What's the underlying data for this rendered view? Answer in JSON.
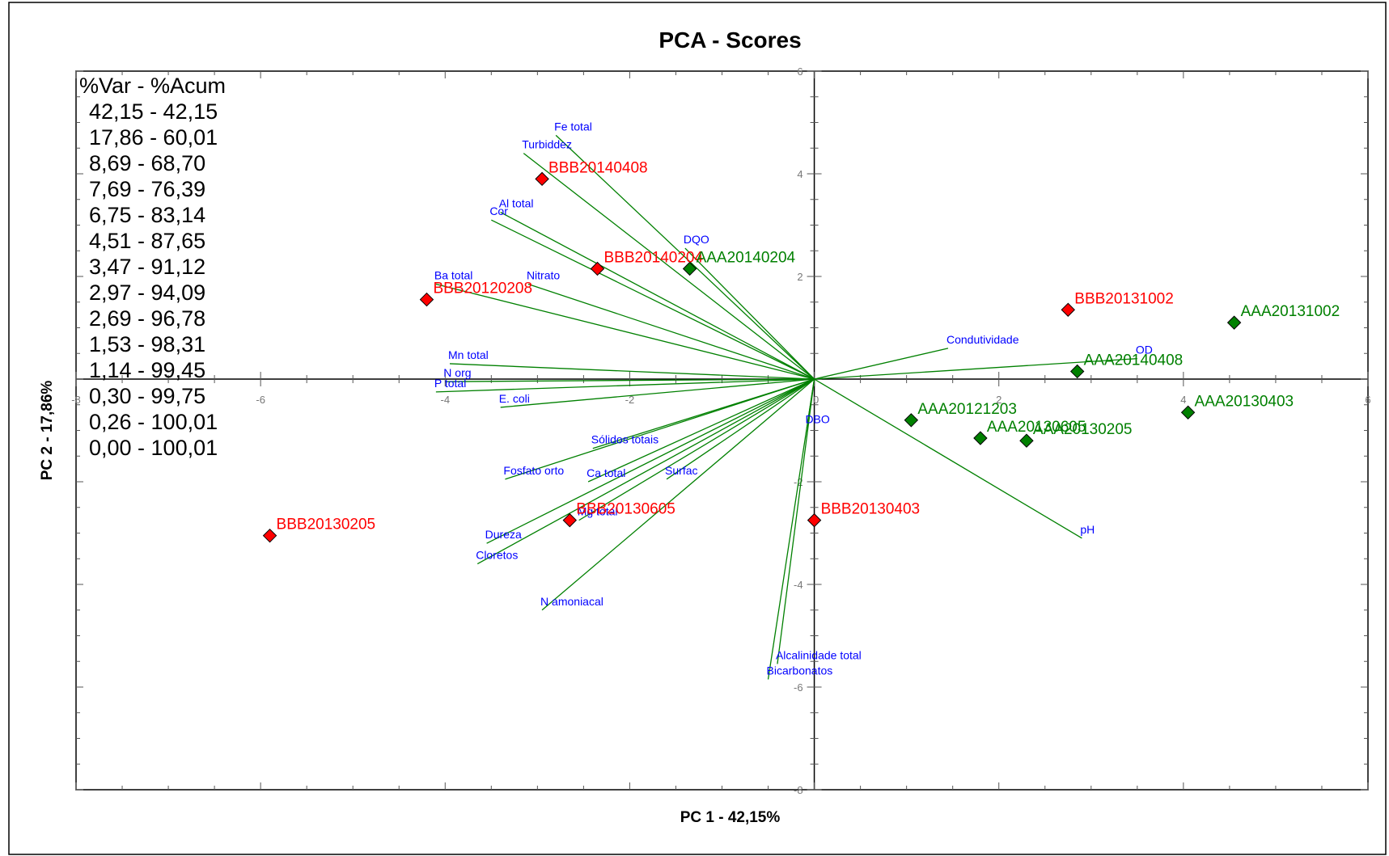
{
  "chart_data": {
    "type": "scatter",
    "title": "PCA - Scores",
    "xlabel": "PC 1 - 42,15%",
    "ylabel": "PC 2 - 17,86%",
    "xlim": [
      -8,
      6
    ],
    "ylim": [
      -8,
      6
    ],
    "x_ticks": [
      {
        "value": -8,
        "label": "-8"
      },
      {
        "value": -6,
        "label": "-6"
      },
      {
        "value": -4,
        "label": "-4"
      },
      {
        "value": -2,
        "label": "-2"
      },
      {
        "value": 0,
        "label": "0"
      },
      {
        "value": 2,
        "label": "2"
      },
      {
        "value": 4,
        "label": "4"
      },
      {
        "value": 6,
        "label": "6"
      }
    ],
    "y_ticks": [
      {
        "value": 6,
        "label": "6"
      },
      {
        "value": 4,
        "label": "4"
      },
      {
        "value": 2,
        "label": "2"
      },
      {
        "value": 0,
        "label": "0"
      },
      {
        "value": -2,
        "label": "-2"
      },
      {
        "value": -4,
        "label": "-4"
      },
      {
        "value": -6,
        "label": "-6"
      },
      {
        "value": -8,
        "label": "-8"
      }
    ],
    "variance_header": "%Var - %Acum",
    "variance_rows": [
      "42,15 - 42,15",
      "17,86 - 60,01",
      "8,69 - 68,70",
      "7,69 - 76,39",
      "6,75 - 83,14",
      "4,51 - 87,65",
      "3,47 - 91,12",
      "2,97 - 94,09",
      "2,69 - 96,78",
      "1,53 - 98,31",
      "1,14 - 99,45",
      "0,30 - 99,75",
      "0,26 - 100,01",
      "0,00 - 100,01"
    ],
    "scores": [
      {
        "label": "BBB20140408",
        "x": -2.95,
        "y": 3.9,
        "group": "BBB"
      },
      {
        "label": "BBB20140204",
        "x": -2.35,
        "y": 2.15,
        "group": "BBB"
      },
      {
        "label": "BBB20120208",
        "x": -4.2,
        "y": 1.55,
        "group": "BBB"
      },
      {
        "label": "BBB20130205",
        "x": -5.9,
        "y": -3.05,
        "group": "BBB"
      },
      {
        "label": "BBB20130605",
        "x": -2.65,
        "y": -2.75,
        "group": "BBB"
      },
      {
        "label": "BBB20130403",
        "x": 0.0,
        "y": -2.75,
        "group": "BBB"
      },
      {
        "label": "BBB20131002",
        "x": 2.75,
        "y": 1.35,
        "group": "BBB"
      },
      {
        "label": "AAA20140204",
        "x": -1.35,
        "y": 2.15,
        "group": "AAA"
      },
      {
        "label": "AAA20131002",
        "x": 4.55,
        "y": 1.1,
        "group": "AAA"
      },
      {
        "label": "AAA20140408",
        "x": 2.85,
        "y": 0.15,
        "group": "AAA"
      },
      {
        "label": "AAA20130403",
        "x": 4.05,
        "y": -0.65,
        "group": "AAA"
      },
      {
        "label": "AAA20121203",
        "x": 1.05,
        "y": -0.8,
        "group": "AAA"
      },
      {
        "label": "AAA20130605",
        "x": 1.8,
        "y": -1.15,
        "group": "AAA"
      },
      {
        "label": "AAA20130205",
        "x": 2.3,
        "y": -1.2,
        "group": "AAA"
      }
    ],
    "loadings": [
      {
        "label": "Fe total",
        "x": -2.8,
        "y": 4.75
      },
      {
        "label": "Turbiddez",
        "x": -3.15,
        "y": 4.4
      },
      {
        "label": "Al total",
        "x": -3.4,
        "y": 3.25
      },
      {
        "label": "Cor",
        "x": -3.5,
        "y": 3.1
      },
      {
        "label": "DQO",
        "x": -1.4,
        "y": 2.55
      },
      {
        "label": "Nitrato",
        "x": -3.1,
        "y": 1.85
      },
      {
        "label": "Ba total",
        "x": -4.1,
        "y": 1.85
      },
      {
        "label": "Mn total",
        "x": -3.95,
        "y": 0.3
      },
      {
        "label": "N org",
        "x": -4.0,
        "y": -0.05
      },
      {
        "label": "P total",
        "x": -4.1,
        "y": -0.25
      },
      {
        "label": "E. coli",
        "x": -3.4,
        "y": -0.55
      },
      {
        "label": "Sólidos totais",
        "x": -2.4,
        "y": -1.35
      },
      {
        "label": "Fosfato orto",
        "x": -3.35,
        "y": -1.95
      },
      {
        "label": "Ca total",
        "x": -2.45,
        "y": -2.0
      },
      {
        "label": "Surfac",
        "x": -1.6,
        "y": -1.95
      },
      {
        "label": "Mg total",
        "x": -2.55,
        "y": -2.75
      },
      {
        "label": "Dureza",
        "x": -3.55,
        "y": -3.2
      },
      {
        "label": "Cloretos",
        "x": -3.65,
        "y": -3.6
      },
      {
        "label": "N amoniacal",
        "x": -2.95,
        "y": -4.5
      },
      {
        "label": "DBO",
        "x": -0.08,
        "y": -0.95
      },
      {
        "label": "Alcalinidade total",
        "x": -0.4,
        "y": -5.55
      },
      {
        "label": "Bicarbonatos",
        "x": -0.5,
        "y": -5.85
      },
      {
        "label": "Condutividade",
        "x": 1.45,
        "y": 0.6
      },
      {
        "label": "OD",
        "x": 3.5,
        "y": 0.4
      },
      {
        "label": "pH",
        "x": 2.9,
        "y": -3.1
      }
    ],
    "colors": {
      "BBB": "#ff0000",
      "AAA": "#008000",
      "loading_line": "#008000",
      "loading_label": "#0000ff",
      "axis": "#000000"
    },
    "legend": "none",
    "grid": false
  }
}
